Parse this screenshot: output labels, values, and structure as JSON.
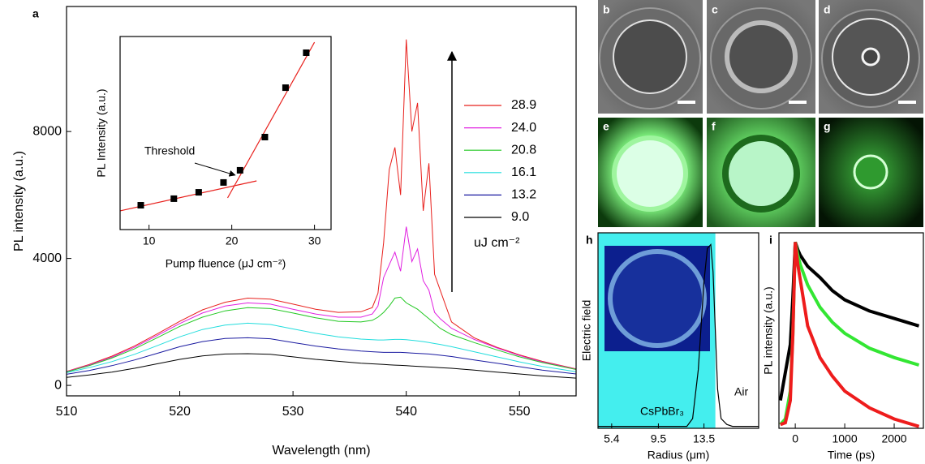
{
  "chart_data": [
    {
      "type": "line",
      "panel_label": "a",
      "x_label": "Wavelength (nm)",
      "y_label": "PL intensity (a.u.)",
      "x": [
        510,
        512,
        514,
        516,
        518,
        520,
        522,
        524,
        526,
        528,
        530,
        532,
        534,
        536,
        537,
        537.5,
        538,
        538.5,
        539,
        539.5,
        540,
        540.5,
        541,
        541.5,
        542,
        542.5,
        543,
        544,
        546,
        548,
        550,
        552,
        555
      ],
      "series": [
        {
          "name": "28.9",
          "color": "#e8201c",
          "values": [
            440,
            660,
            920,
            1240,
            1620,
            2020,
            2380,
            2620,
            2750,
            2720,
            2560,
            2400,
            2300,
            2320,
            2450,
            2900,
            4500,
            6800,
            7500,
            6000,
            10900,
            8000,
            8900,
            5500,
            7000,
            3500,
            3000,
            2000,
            1500,
            1200,
            960,
            760,
            520
          ]
        },
        {
          "name": "24.0",
          "color": "#e020e0",
          "values": [
            430,
            640,
            890,
            1200,
            1570,
            1950,
            2280,
            2500,
            2600,
            2560,
            2400,
            2250,
            2150,
            2150,
            2250,
            2500,
            3400,
            3800,
            4200,
            3600,
            5000,
            3900,
            4300,
            3300,
            3000,
            2300,
            2100,
            1800,
            1450,
            1180,
            940,
            740,
            510
          ]
        },
        {
          "name": "20.8",
          "color": "#22c822",
          "values": [
            420,
            620,
            860,
            1150,
            1500,
            1860,
            2150,
            2350,
            2450,
            2420,
            2280,
            2130,
            2020,
            2000,
            2050,
            2150,
            2300,
            2500,
            2750,
            2780,
            2600,
            2500,
            2400,
            2250,
            2100,
            1950,
            1800,
            1600,
            1350,
            1120,
            900,
            720,
            500
          ]
        },
        {
          "name": "16.1",
          "color": "#22dddd",
          "values": [
            400,
            560,
            750,
            980,
            1250,
            1530,
            1760,
            1900,
            1960,
            1920,
            1780,
            1640,
            1530,
            1460,
            1440,
            1430,
            1430,
            1440,
            1450,
            1450,
            1440,
            1420,
            1400,
            1380,
            1350,
            1320,
            1290,
            1220,
            1060,
            900,
            740,
            600,
            430
          ]
        },
        {
          "name": "13.2",
          "color": "#1a1aa0",
          "values": [
            350,
            470,
            620,
            800,
            1010,
            1220,
            1380,
            1480,
            1500,
            1470,
            1350,
            1240,
            1150,
            1080,
            1060,
            1050,
            1040,
            1040,
            1040,
            1040,
            1030,
            1020,
            1010,
            1000,
            990,
            970,
            950,
            910,
            800,
            700,
            590,
            480,
            360
          ]
        },
        {
          "name": "9.0",
          "color": "#000000",
          "values": [
            250,
            330,
            420,
            540,
            680,
            820,
            930,
            990,
            1000,
            980,
            900,
            820,
            760,
            700,
            680,
            670,
            660,
            650,
            640,
            630,
            620,
            610,
            600,
            590,
            580,
            570,
            560,
            540,
            480,
            420,
            360,
            300,
            230
          ]
        }
      ],
      "xlim": [
        510,
        555
      ],
      "ylim": [
        -330,
        11940
      ],
      "xticks": [
        510,
        520,
        530,
        540,
        550
      ],
      "yticks": [
        0,
        4000,
        8000
      ],
      "legend": "right",
      "legend_title": "uJ cm⁻²"
    },
    {
      "type": "scatter",
      "x_label": "Pump fluence (μJ cm⁻²)",
      "y_label": "PL Intensity (a.u.)",
      "x": [
        9,
        13,
        16,
        19,
        21,
        24,
        26.5,
        29
      ],
      "values": [
        12.6,
        16,
        19.3,
        24.4,
        30.7,
        47.9,
        73.5,
        91.6
      ],
      "color": "#000000",
      "fits": [
        {
          "x": [
            6.5,
            23
          ],
          "values": [
            9.7,
            25.2
          ]
        },
        {
          "x": [
            19.5,
            30
          ],
          "values": [
            16.4,
            97
          ]
        }
      ],
      "fit_color": "#e8201c",
      "xlim": [
        6.5,
        32
      ],
      "ylim": [
        0,
        100
      ],
      "xticks": [
        10,
        20,
        30
      ],
      "annotation": "Threshold"
    },
    {
      "type": "line",
      "panel_label": "h",
      "x_label": "Radius (μm)",
      "y_label": "Electric field",
      "x": [
        4.2,
        6,
        8,
        10,
        11,
        12,
        12.5,
        13,
        13.5,
        13.8,
        14.1,
        14.3,
        14.5,
        14.7,
        15,
        15.5,
        16,
        18.3
      ],
      "values": [
        0.01,
        0.01,
        0.01,
        0.01,
        0.01,
        0.01,
        0.05,
        0.3,
        0.75,
        0.92,
        0.94,
        0.8,
        0.5,
        0.2,
        0.05,
        0.02,
        0.01,
        0.01
      ],
      "color": "#000000",
      "xlim": [
        4.2,
        18.3
      ],
      "ylim": [
        0,
        1
      ],
      "xticks": [
        5.4,
        9.5,
        13.5
      ],
      "region_end": 14.5,
      "region_color": "#44eeee",
      "region_label": "CsPbBr₃",
      "outside_label": "Air"
    },
    {
      "type": "line",
      "panel_label": "i",
      "x_label": "Time (ps)",
      "y_label": "PL intensity (a.u.)",
      "x": [
        -300,
        -200,
        -100,
        -50,
        0,
        50,
        100,
        250,
        500,
        750,
        1000,
        1500,
        2000,
        2500
      ],
      "series": [
        {
          "color": "#000000",
          "values": [
            0.15,
            0.3,
            0.45,
            0.7,
            1.0,
            0.96,
            0.93,
            0.87,
            0.81,
            0.74,
            0.69,
            0.63,
            0.59,
            0.55
          ]
        },
        {
          "color": "#33e633",
          "values": [
            0.02,
            0.05,
            0.2,
            0.5,
            1.0,
            0.93,
            0.88,
            0.77,
            0.65,
            0.57,
            0.51,
            0.43,
            0.38,
            0.34
          ]
        },
        {
          "color": "#ee1c1c",
          "values": [
            0.02,
            0.03,
            0.15,
            0.5,
            1.0,
            0.88,
            0.8,
            0.55,
            0.38,
            0.28,
            0.2,
            0.11,
            0.05,
            0.01
          ]
        }
      ],
      "xlim": [
        -330,
        2590
      ],
      "ylim": [
        0,
        1.05
      ],
      "xticks": [
        0,
        1000,
        2000
      ]
    }
  ],
  "images": [
    {
      "label": "b"
    },
    {
      "label": "c"
    },
    {
      "label": "d"
    },
    {
      "label": "e"
    },
    {
      "label": "f"
    },
    {
      "label": "g"
    }
  ]
}
